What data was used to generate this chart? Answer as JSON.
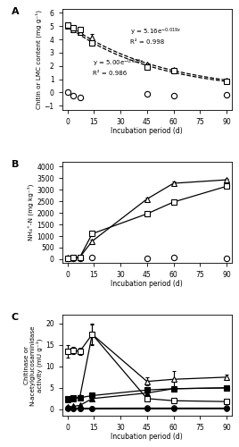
{
  "panel_A": {
    "title": "A",
    "ylabel": "Chitin or LMC content (mg g⁻¹)",
    "xlabel": "Incubation period (d)",
    "ylim": [
      -1.3,
      6.3
    ],
    "yticks": [
      -1,
      0,
      1,
      2,
      3,
      4,
      5,
      6
    ],
    "xticks": [
      0,
      15,
      30,
      45,
      60,
      75,
      90
    ],
    "control_x": [
      0,
      3,
      7,
      45,
      60,
      90
    ],
    "control_y": [
      0.05,
      -0.25,
      -0.38,
      -0.12,
      -0.22,
      -0.18
    ],
    "lmc60_x": [
      0,
      3,
      7,
      14,
      45,
      60,
      90
    ],
    "lmc60_y": [
      5.0,
      4.75,
      4.55,
      4.15,
      2.1,
      1.7,
      0.9
    ],
    "lmc60_err": [
      0.08,
      0.12,
      0.1,
      0.28,
      0.1,
      0.1,
      0.05
    ],
    "chitin_x": [
      0,
      3,
      7,
      14,
      45,
      60,
      90
    ],
    "chitin_y": [
      5.08,
      4.88,
      4.72,
      3.72,
      1.92,
      1.62,
      0.85
    ],
    "chitin_err": [
      0.08,
      0.08,
      0.12,
      0.18,
      0.1,
      0.08,
      0.05
    ],
    "fit_chitin_a": 5.16,
    "fit_chitin_b": -0.019,
    "fit_lmc_a": 5.0,
    "fit_lmc_b": -0.02
  },
  "panel_B": {
    "title": "B",
    "ylabel": "NH₄⁺-N (mg kg⁻¹)",
    "xlabel": "Incubation period (d)",
    "ylim": [
      -150,
      4200
    ],
    "yticks": [
      0,
      500,
      1000,
      1500,
      2000,
      2500,
      3000,
      3500,
      4000
    ],
    "xticks": [
      0,
      15,
      30,
      45,
      60,
      75,
      90
    ],
    "control_x": [
      0,
      3,
      7,
      14,
      45,
      60,
      90
    ],
    "control_y": [
      50,
      55,
      50,
      60,
      55,
      60,
      55
    ],
    "lmc60_x": [
      0,
      3,
      7,
      14,
      45,
      60,
      90
    ],
    "lmc60_y": [
      60,
      65,
      90,
      780,
      2600,
      3280,
      3430
    ],
    "lmc60_err": [
      20,
      25,
      30,
      50,
      80,
      60,
      55
    ],
    "chitin_x": [
      0,
      3,
      7,
      14,
      45,
      60,
      90
    ],
    "chitin_y": [
      50,
      60,
      85,
      1100,
      1960,
      2470,
      3150
    ],
    "chitin_err": [
      15,
      18,
      35,
      80,
      55,
      75,
      65
    ]
  },
  "panel_C": {
    "title": "C",
    "ylabel": "Chitinase or\nN-acetylglucosaminidase\nactivity (mU g⁻¹)",
    "xlabel": "Incubation period (d)",
    "ylim": [
      -1.5,
      22
    ],
    "yticks": [
      0,
      5,
      10,
      15,
      20
    ],
    "xticks": [
      0,
      15,
      30,
      45,
      60,
      75,
      90
    ],
    "ctrl_open_x": [
      0,
      3,
      7,
      14,
      45,
      60,
      90
    ],
    "ctrl_open_y": [
      0.3,
      0.25,
      0.25,
      0.25,
      0.28,
      0.28,
      0.28
    ],
    "ctrl_closed_x": [
      0,
      3,
      7,
      14,
      45,
      60,
      90
    ],
    "ctrl_closed_y": [
      0.12,
      0.1,
      0.08,
      0.08,
      0.1,
      0.1,
      0.12
    ],
    "lmc_open_x": [
      0,
      3,
      7,
      14,
      45,
      60,
      90
    ],
    "lmc_open_y": [
      2.2,
      2.5,
      2.8,
      17.5,
      6.5,
      7.0,
      7.5
    ],
    "lmc_open_err": [
      0.4,
      0.4,
      0.4,
      2.5,
      1.0,
      2.0,
      0.5
    ],
    "lmc_closed_x": [
      0,
      3,
      7,
      14,
      45,
      60,
      90
    ],
    "lmc_closed_y": [
      0.5,
      0.7,
      0.9,
      2.5,
      3.8,
      4.8,
      5.0
    ],
    "lmc_closed_err": [
      0.1,
      0.15,
      0.18,
      0.3,
      0.3,
      0.4,
      0.3
    ],
    "chitin_open_x": [
      0,
      3,
      7,
      14,
      45,
      60,
      90
    ],
    "chitin_open_y": [
      13.5,
      13.8,
      13.5,
      17.5,
      2.5,
      2.0,
      1.8
    ],
    "chitin_open_err": [
      1.5,
      0.8,
      0.8,
      2.3,
      0.5,
      0.5,
      0.3
    ],
    "chitin_closed_x": [
      0,
      3,
      7,
      14,
      45,
      60,
      90
    ],
    "chitin_closed_y": [
      2.5,
      2.7,
      2.7,
      3.2,
      4.5,
      4.8,
      5.0
    ],
    "chitin_closed_err": [
      0.2,
      0.18,
      0.25,
      0.3,
      0.5,
      0.5,
      0.4
    ]
  }
}
